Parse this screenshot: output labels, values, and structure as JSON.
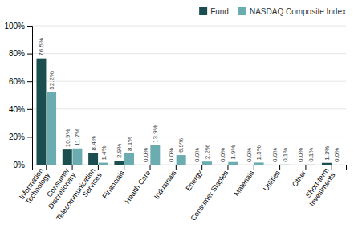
{
  "chart_data": {
    "type": "bar",
    "categories": [
      "Information\nTechnology",
      "Consumer\nDiscretionary",
      "Telecommunication\nServices",
      "Financials",
      "Health Care",
      "Industrials",
      "Energy",
      "Consumer Staples",
      "Materials",
      "Utilities",
      "Other",
      "Short-term\nInvestments"
    ],
    "series": [
      {
        "name": "Fund",
        "color": "#1b4f4f",
        "values": [
          76.5,
          10.9,
          8.4,
          2.9,
          0.0,
          0.0,
          0.0,
          0.0,
          0.0,
          0.0,
          0.0,
          1.3
        ],
        "value_labels": [
          "76.5%",
          "10.9%",
          "8.4%",
          "2.9%",
          "0.0%",
          "0.0%",
          "0.0%",
          "0.0%",
          "0.0%",
          "0.0%",
          "0.0%",
          "1.3%"
        ]
      },
      {
        "name": "NASDAQ Composite Index",
        "color": "#6aacb0",
        "values": [
          52.2,
          11.7,
          1.4,
          8.1,
          13.9,
          6.9,
          2.2,
          1.9,
          1.5,
          0.1,
          0.1,
          0.0
        ],
        "value_labels": [
          "52.2%",
          "11.7%",
          "1.4%",
          "8.1%",
          "13.9%",
          "6.9%",
          "2.2%",
          "1.9%",
          "1.5%",
          "0.1%",
          "0.1%",
          "0.0%"
        ]
      }
    ],
    "ylim": [
      0,
      100
    ],
    "yticks": [
      {
        "value": 0,
        "label": "0%"
      },
      {
        "value": 20,
        "label": "20%"
      },
      {
        "value": 40,
        "label": "40%"
      },
      {
        "value": 60,
        "label": "60%"
      },
      {
        "value": 80,
        "label": "80%"
      },
      {
        "value": 100,
        "label": "100%"
      }
    ],
    "grid": true,
    "data_labels": true,
    "legend": "upper right"
  }
}
